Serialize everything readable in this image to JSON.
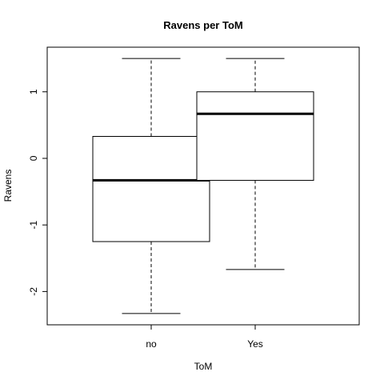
{
  "chart_data": {
    "type": "boxplot",
    "title": "Ravens per ToM",
    "xlabel": "ToM",
    "ylabel": "Ravens",
    "categories": [
      "no",
      "Yes"
    ],
    "boxes": [
      {
        "category": "no",
        "whisker_low": -2.33,
        "q1": -1.25,
        "median": -0.33,
        "q3": 0.33,
        "whisker_high": 1.5
      },
      {
        "category": "Yes",
        "whisker_low": -1.67,
        "q1": -0.33,
        "median": 0.67,
        "q3": 1.0,
        "whisker_high": 1.5
      }
    ],
    "yticks": [
      -2,
      -1,
      0,
      1
    ],
    "ytick_labels": [
      "-2",
      "-1",
      "0",
      "1"
    ],
    "ylim": [
      -2.5,
      1.67
    ],
    "grid": false,
    "colors": {
      "box_fill": "#ffffff",
      "stroke": "#000000"
    }
  }
}
